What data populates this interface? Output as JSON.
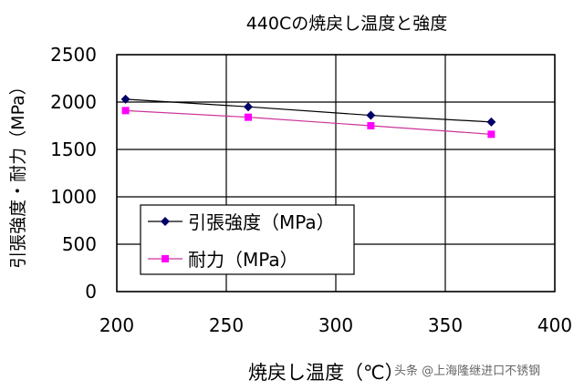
{
  "chart_data": {
    "type": "line",
    "title": "440Cの焼戻し温度と強度",
    "xlabel": "焼戻し温度（℃）",
    "ylabel": "引張強度・耐力（MPa）",
    "xlim": [
      200,
      400
    ],
    "ylim": [
      0,
      2500
    ],
    "xticks": [
      200,
      250,
      300,
      350,
      400
    ],
    "yticks": [
      0,
      500,
      1000,
      1500,
      2000,
      2500
    ],
    "grid": true,
    "legend_position": "lower-left",
    "series": [
      {
        "name": "引張強度（MPa）",
        "color": "#000066",
        "line_color": "#000000",
        "marker": "diamond",
        "x": [
          204,
          260,
          316,
          371
        ],
        "values": [
          2030,
          1950,
          1860,
          1790
        ]
      },
      {
        "name": "耐力（MPa）",
        "color": "#ff00ff",
        "line_color": "#cc3399",
        "marker": "square",
        "x": [
          204,
          260,
          316,
          371
        ],
        "values": [
          1910,
          1840,
          1750,
          1660
        ]
      }
    ]
  },
  "watermark": "头条 @上海隆继进口不锈钢"
}
